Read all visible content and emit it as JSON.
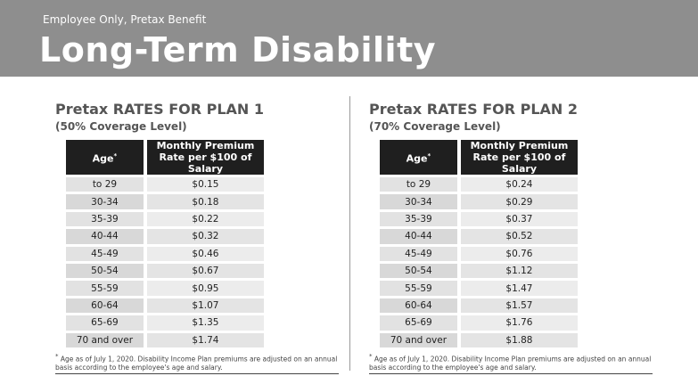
{
  "header": {
    "eyebrow": "Employee Only, Pretax Benefit",
    "title": "Long-Term Disability",
    "background_color": "#8e8e8e"
  },
  "plans": [
    {
      "title": "Pretax RATES FOR PLAN 1",
      "coverage": "(50% Coverage Level)",
      "col_age": "Age",
      "col_age_marker": "*",
      "col_rate_line1": "Monthly Premium",
      "col_rate_line2": "Rate per $100 of Salary",
      "rows": [
        {
          "age": "to 29",
          "rate": "$0.15"
        },
        {
          "age": "30-34",
          "rate": "$0.18"
        },
        {
          "age": "35-39",
          "rate": "$0.22"
        },
        {
          "age": "40-44",
          "rate": "$0.32"
        },
        {
          "age": "45-49",
          "rate": "$0.46"
        },
        {
          "age": "50-54",
          "rate": "$0.67"
        },
        {
          "age": "55-59",
          "rate": "$0.95"
        },
        {
          "age": "60-64",
          "rate": "$1.07"
        },
        {
          "age": "65-69",
          "rate": "$1.35"
        },
        {
          "age": "70 and over",
          "rate": "$1.74"
        }
      ],
      "footnote_marker": "*",
      "footnote": "Age as of July 1, 2020. Disability Income Plan premiums are adjusted on an annual basis according to the employee's age and salary."
    },
    {
      "title": "Pretax RATES FOR PLAN 2",
      "coverage": "(70% Coverage Level)",
      "col_age": "Age",
      "col_age_marker": "*",
      "col_rate_line1": "Monthly Premium",
      "col_rate_line2": "Rate per $100 of Salary",
      "rows": [
        {
          "age": "to 29",
          "rate": "$0.24"
        },
        {
          "age": "30-34",
          "rate": "$0.29"
        },
        {
          "age": "35-39",
          "rate": "$0.37"
        },
        {
          "age": "40-44",
          "rate": "$0.52"
        },
        {
          "age": "45-49",
          "rate": "$0.76"
        },
        {
          "age": "50-54",
          "rate": "$1.12"
        },
        {
          "age": "55-59",
          "rate": "$1.47"
        },
        {
          "age": "60-64",
          "rate": "$1.57"
        },
        {
          "age": "65-69",
          "rate": "$1.76"
        },
        {
          "age": "70 and over",
          "rate": "$1.88"
        }
      ],
      "footnote_marker": "*",
      "footnote": "Age as of July 1, 2020. Disability Income Plan premiums are adjusted on an annual basis according to the employee's age and salary."
    }
  ]
}
